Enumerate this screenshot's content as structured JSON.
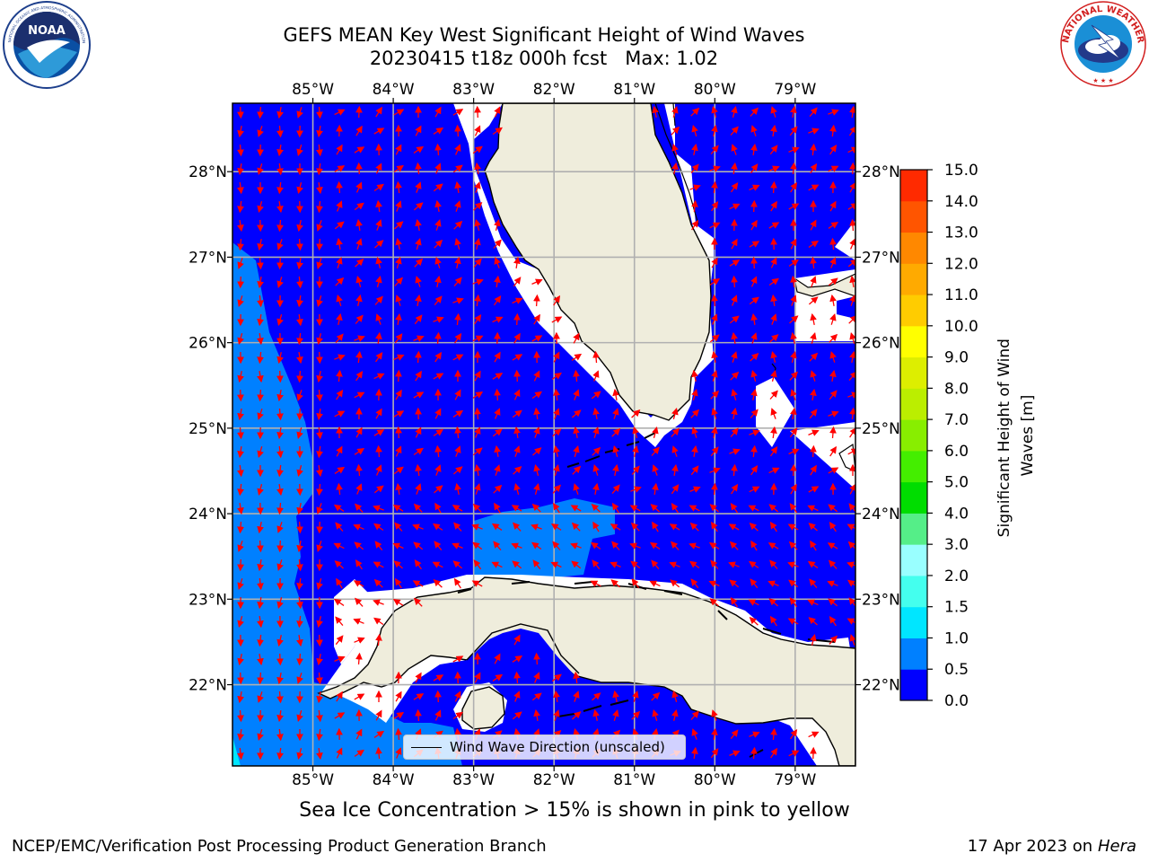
{
  "title": {
    "line1": "GEFS MEAN Key West Significant Height of Wind Waves",
    "line2": "20230415 t18z 000h fcst   Max: 1.02"
  },
  "logos": {
    "left": {
      "icon": "noaa-logo",
      "text": "NOAA",
      "ring_text": "NATIONAL OCEANIC AND ATMOSPHERIC ADMINISTRATION · U.S. DEPARTMENT OF COMMERCE"
    },
    "right": {
      "icon": "nws-logo",
      "ring_text": "NATIONAL WEATHER SERVICE"
    }
  },
  "map": {
    "lon_labels": [
      "85°W",
      "84°W",
      "83°W",
      "82°W",
      "81°W",
      "80°W",
      "79°W"
    ],
    "lat_labels": [
      "28°N",
      "27°N",
      "26°N",
      "25°N",
      "24°N",
      "23°N",
      "22°N"
    ],
    "lon_values": [
      -85,
      -84,
      -83,
      -82,
      -81,
      -80,
      -79
    ],
    "lat_values": [
      28,
      27,
      26,
      25,
      24,
      23,
      22
    ],
    "extent": {
      "lon_min": -86.0,
      "lon_max": -78.25,
      "lat_min": 21.05,
      "lat_max": 28.8
    },
    "gridlines": true,
    "colors": {
      "ocean_0_0.5": "#0000ff",
      "ocean_0.5_1.0": "#0080ff",
      "ocean_1.0_1.5": "#00ffff",
      "land": "#efeddc",
      "no_data": "#ffffff",
      "arrow": "#ff0000",
      "coast": "#000000"
    }
  },
  "colorbar": {
    "label_line1": "Significant Height of Wind",
    "label_line2": "Waves [m]",
    "ticks": [
      "0.0",
      "0.5",
      "1.0",
      "1.5",
      "2.0",
      "3.0",
      "4.0",
      "5.0",
      "6.0",
      "7.0",
      "8.0",
      "9.0",
      "10.0",
      "11.0",
      "12.0",
      "13.0",
      "14.0",
      "15.0"
    ],
    "colors": [
      "#0000ff",
      "#0080ff",
      "#00e6ff",
      "#44ffee",
      "#99ffff",
      "#55ee88",
      "#00dd00",
      "#44ee00",
      "#88ee00",
      "#bbee00",
      "#ddee00",
      "#ffff00",
      "#ffcc00",
      "#ffaa00",
      "#ff8800",
      "#ff5500",
      "#ff2a00"
    ]
  },
  "legend": {
    "label": "Wind Wave Direction (unscaled)"
  },
  "ice_note": "Sea Ice Concentration > 15% is shown in pink to yellow",
  "footer": {
    "left": "NCEP/EMC/Verification Post Processing Product Generation Branch",
    "right_date": "17 Apr 2023 on ",
    "right_host": "Hera"
  }
}
